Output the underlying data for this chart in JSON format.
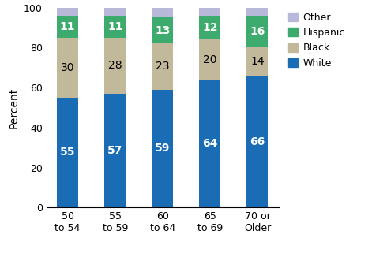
{
  "categories": [
    "50\nto 54",
    "55\nto 59",
    "60\nto 64",
    "65\nto 69",
    "70 or\nOlder"
  ],
  "white": [
    55,
    57,
    59,
    64,
    66
  ],
  "black": [
    30,
    28,
    23,
    20,
    14
  ],
  "hispanic": [
    11,
    11,
    13,
    12,
    16
  ],
  "other": [
    4,
    4,
    5,
    4,
    4
  ],
  "colors": {
    "white": "#1a6db5",
    "black": "#c2b89a",
    "hispanic": "#3daa6e",
    "other": "#b8b8d8"
  },
  "ylabel": "Percent",
  "ylim": [
    0,
    100
  ],
  "yticks": [
    0,
    20,
    40,
    60,
    80,
    100
  ],
  "bar_width": 0.45,
  "label_fontsize": 10,
  "axis_fontsize": 10,
  "tick_fontsize": 9
}
